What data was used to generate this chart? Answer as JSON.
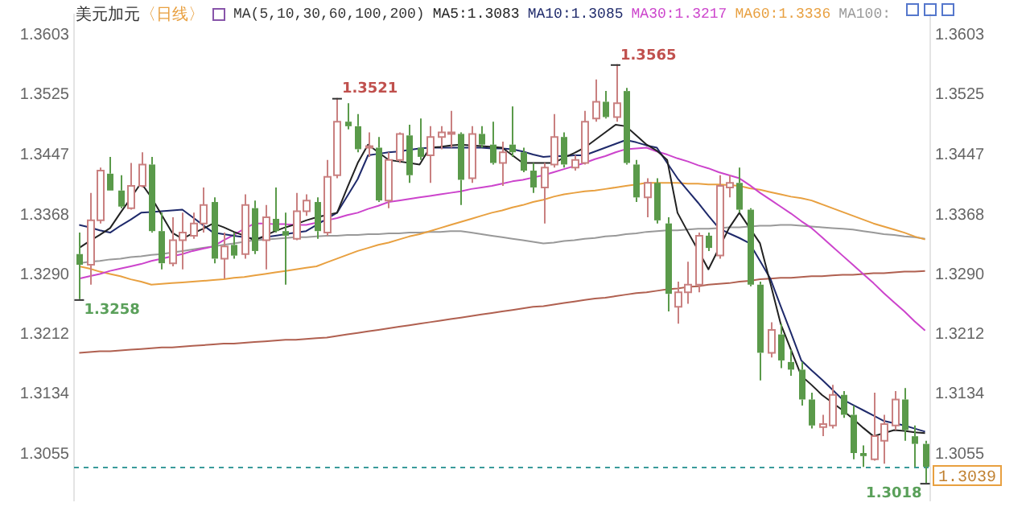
{
  "chart_data": {
    "type": "candlestick",
    "title": "美元加元",
    "subtitle": "〈日线〉",
    "legend_title": "MA(5,10,30,60,100,200)",
    "legend": "top",
    "categories": [
      null,
      null,
      null,
      null,
      null,
      null,
      null,
      null,
      null,
      null,
      null,
      null,
      null,
      null,
      null,
      null,
      null,
      null,
      null,
      null,
      null,
      null,
      null,
      null,
      null,
      null,
      null,
      null,
      null,
      null,
      null,
      null,
      null,
      null,
      null,
      null,
      null,
      null,
      null,
      null,
      null,
      null,
      null,
      null,
      null,
      null,
      null,
      null,
      null,
      null,
      null,
      null,
      null,
      null,
      null,
      null,
      null,
      null,
      null,
      null,
      null,
      null,
      null,
      null,
      null,
      null,
      null,
      null,
      null,
      null,
      null,
      null,
      null,
      null,
      null,
      null,
      null,
      null,
      null,
      null,
      null,
      null,
      null
    ],
    "ohlc": [
      [
        1.3317,
        1.3345,
        1.3258,
        1.3303
      ],
      [
        1.3303,
        1.3397,
        1.3277,
        1.3361
      ],
      [
        1.3361,
        1.343,
        1.3357,
        1.3426
      ],
      [
        1.3422,
        1.3444,
        1.34,
        1.34
      ],
      [
        1.34,
        1.342,
        1.3377,
        1.3379
      ],
      [
        1.3377,
        1.3436,
        1.3375,
        1.3406
      ],
      [
        1.3406,
        1.345,
        1.3404,
        1.3434
      ],
      [
        1.3434,
        1.3444,
        1.3345,
        1.3347
      ],
      [
        1.3347,
        1.3371,
        1.3297,
        1.3305
      ],
      [
        1.3305,
        1.3365,
        1.3301,
        1.3335
      ],
      [
        1.3335,
        1.3371,
        1.3297,
        1.3345
      ],
      [
        1.3341,
        1.3371,
        1.3337,
        1.3357
      ],
      [
        1.3357,
        1.3404,
        1.3345,
        1.3381
      ],
      [
        1.3385,
        1.3391,
        1.3305,
        1.3311
      ],
      [
        1.3311,
        1.3345,
        1.3285,
        1.3327
      ],
      [
        1.3329,
        1.3345,
        1.3311,
        1.3315
      ],
      [
        1.3317,
        1.3395,
        1.3311,
        1.3381
      ],
      [
        1.3377,
        1.3387,
        1.3317,
        1.3321
      ],
      [
        1.3335,
        1.3381,
        1.3297,
        1.3365
      ],
      [
        1.3363,
        1.3404,
        1.3345,
        1.3347
      ],
      [
        1.3347,
        1.3371,
        1.3277,
        1.3341
      ],
      [
        1.3337,
        1.3397,
        1.3335,
        1.3373
      ],
      [
        1.3373,
        1.3395,
        1.3367,
        1.3387
      ],
      [
        1.3385,
        1.3391,
        1.3337,
        1.3347
      ],
      [
        1.3345,
        1.344,
        1.3341,
        1.3418
      ],
      [
        1.342,
        1.3521,
        1.3416,
        1.349
      ],
      [
        1.349,
        1.3514,
        1.348,
        1.3484
      ],
      [
        1.3484,
        1.35,
        1.345,
        1.3454
      ],
      [
        1.3456,
        1.3476,
        1.3444,
        1.3458
      ],
      [
        1.3456,
        1.347,
        1.3385,
        1.3387
      ],
      [
        1.3387,
        1.345,
        1.3377,
        1.344
      ],
      [
        1.344,
        1.3476,
        1.3436,
        1.3474
      ],
      [
        1.3472,
        1.3486,
        1.341,
        1.342
      ],
      [
        1.3456,
        1.3494,
        1.344,
        1.3444
      ],
      [
        1.3446,
        1.3484,
        1.341,
        1.347
      ],
      [
        1.347,
        1.3484,
        1.3454,
        1.3476
      ],
      [
        1.3474,
        1.3504,
        1.3456,
        1.3476
      ],
      [
        1.3474,
        1.3476,
        1.3381,
        1.3414
      ],
      [
        1.3416,
        1.3484,
        1.341,
        1.3474
      ],
      [
        1.3474,
        1.3484,
        1.3456,
        1.346
      ],
      [
        1.346,
        1.349,
        1.3434,
        1.3436
      ],
      [
        1.3436,
        1.3464,
        1.3406,
        1.345
      ],
      [
        1.346,
        1.351,
        1.3444,
        1.345
      ],
      [
        1.345,
        1.3456,
        1.3424,
        1.3426
      ],
      [
        1.3426,
        1.3436,
        1.3397,
        1.3404
      ],
      [
        1.3404,
        1.3436,
        1.3357,
        1.343
      ],
      [
        1.3434,
        1.35,
        1.343,
        1.347
      ],
      [
        1.347,
        1.3476,
        1.343,
        1.3434
      ],
      [
        1.343,
        1.3446,
        1.3426,
        1.344
      ],
      [
        1.3436,
        1.3504,
        1.3434,
        1.349
      ],
      [
        1.3494,
        1.3545,
        1.349,
        1.3516
      ],
      [
        1.3516,
        1.353,
        1.3494,
        1.3496
      ],
      [
        1.3496,
        1.3565,
        1.349,
        1.3514
      ],
      [
        1.353,
        1.3534,
        1.3434,
        1.3436
      ],
      [
        1.3434,
        1.344,
        1.3385,
        1.3391
      ],
      [
        1.3391,
        1.3416,
        1.3365,
        1.341
      ],
      [
        1.341,
        1.3416,
        1.3357,
        1.3361
      ],
      [
        1.3357,
        1.3365,
        1.3242,
        1.3265
      ],
      [
        1.3248,
        1.3281,
        1.3226,
        1.3267
      ],
      [
        1.3267,
        1.3307,
        1.3252,
        1.3277
      ],
      [
        1.3277,
        1.3345,
        1.3267,
        1.3341
      ],
      [
        1.3341,
        1.3345,
        1.3321,
        1.3325
      ],
      [
        1.3315,
        1.342,
        1.3311,
        1.3406
      ],
      [
        1.3404,
        1.342,
        1.3391,
        1.341
      ],
      [
        1.341,
        1.343,
        1.3371,
        1.3375
      ],
      [
        1.3375,
        1.3377,
        1.3275,
        1.3277
      ],
      [
        1.3277,
        1.3281,
        1.3152,
        1.3188
      ],
      [
        1.3188,
        1.3228,
        1.3182,
        1.3218
      ],
      [
        1.3212,
        1.3226,
        1.3168,
        1.3178
      ],
      [
        1.3176,
        1.3192,
        1.3158,
        1.3166
      ],
      [
        1.3166,
        1.3176,
        1.3119,
        1.3127
      ],
      [
        1.3127,
        1.3136,
        1.3089,
        1.3093
      ],
      [
        1.3091,
        1.3107,
        1.3079,
        1.3095
      ],
      [
        1.3093,
        1.3146,
        1.3089,
        1.3133
      ],
      [
        1.3133,
        1.3138,
        1.3103,
        1.3107
      ],
      [
        1.3107,
        1.3119,
        1.3049,
        1.3057
      ],
      [
        1.3057,
        1.3067,
        1.3039,
        1.3053
      ],
      [
        1.3049,
        1.3136,
        1.3047,
        1.3079
      ],
      [
        1.3073,
        1.3107,
        1.3043,
        1.3095
      ],
      [
        1.3093,
        1.3138,
        1.3087,
        1.3127
      ],
      [
        1.3127,
        1.3142,
        1.3073,
        1.3087
      ],
      [
        1.3079,
        1.3093,
        1.3039,
        1.3069
      ],
      [
        1.3069,
        1.3073,
        1.3018,
        1.3039
      ]
    ],
    "series": [
      {
        "type": "line",
        "name": "MA5:1.3083",
        "color": "#222222",
        "values": [
          1.3325,
          1.3334,
          1.3342,
          1.3351,
          1.3371,
          1.339,
          1.341,
          1.3391,
          1.3368,
          1.3345,
          1.3337,
          1.3344,
          1.335,
          1.3357,
          1.3352,
          1.3346,
          1.3341,
          1.3335,
          1.3341,
          1.3347,
          1.3352,
          1.3356,
          1.3361,
          1.3365,
          1.3368,
          1.3371,
          1.3404,
          1.3436,
          1.346,
          1.345,
          1.344,
          1.3438,
          1.3436,
          1.3434,
          1.3456,
          1.3457,
          1.3459,
          1.346,
          1.3459,
          1.3458,
          1.3457,
          1.3456,
          1.3446,
          1.3436,
          1.3436,
          1.3436,
          1.3436,
          1.3443,
          1.3449,
          1.3456,
          1.3466,
          1.3476,
          1.3486,
          1.3484,
          1.3472,
          1.346,
          1.3452,
          1.344,
          1.3371,
          1.3346,
          1.3322,
          1.3297,
          1.3324,
          1.3351,
          1.3371,
          1.3351,
          1.3331,
          1.3279,
          1.3226,
          1.3192,
          1.3158,
          1.3146,
          1.3133,
          1.3123,
          1.3113,
          1.3102,
          1.309,
          1.3079,
          1.3083,
          1.3087,
          1.3086,
          1.3084,
          1.3083
        ]
      },
      {
        "type": "line",
        "name": "MA10:1.3085",
        "color": "#1f2a6b",
        "values": [
          1.3355,
          1.3352,
          1.3348,
          1.3345,
          1.3354,
          1.3362,
          1.3371,
          1.3372,
          1.3373,
          1.3374,
          1.3375,
          1.3365,
          1.3355,
          1.3345,
          1.3343,
          1.3341,
          1.3339,
          1.3337,
          1.3339,
          1.3341,
          1.3343,
          1.3345,
          1.3347,
          1.3355,
          1.3363,
          1.3371,
          1.3393,
          1.3415,
          1.3446,
          1.3448,
          1.345,
          1.3451,
          1.3453,
          1.3455,
          1.3456,
          1.3456,
          1.3456,
          1.3456,
          1.3456,
          1.3456,
          1.3455,
          1.3455,
          1.3454,
          1.3451,
          1.3447,
          1.3444,
          1.3445,
          1.3445,
          1.3446,
          1.3446,
          1.3451,
          1.3456,
          1.3461,
          1.3466,
          1.3463,
          1.3459,
          1.3456,
          1.3436,
          1.3416,
          1.34,
          1.3384,
          1.3367,
          1.3351,
          1.3344,
          1.3338,
          1.3331,
          1.3308,
          1.3285,
          1.3249,
          1.3214,
          1.3178,
          1.3165,
          1.3153,
          1.314,
          1.3127,
          1.312,
          1.3113,
          1.3106,
          1.3099,
          1.3096,
          1.3093,
          1.3089,
          1.3085
        ]
      },
      {
        "type": "line",
        "name": "MA30:1.3217",
        "color": "#cc44cc",
        "values": [
          1.3285,
          1.3288,
          1.3291,
          1.3295,
          1.3298,
          1.3301,
          1.3304,
          1.3308,
          1.3311,
          1.3314,
          1.3317,
          1.3321,
          1.3324,
          1.3327,
          1.3335,
          1.3342,
          1.335,
          1.3357,
          1.3357,
          1.3356,
          1.3356,
          1.3355,
          1.3355,
          1.3358,
          1.3361,
          1.3364,
          1.3368,
          1.3371,
          1.3376,
          1.338,
          1.3385,
          1.3387,
          1.3389,
          1.3391,
          1.3393,
          1.3395,
          1.3397,
          1.3399,
          1.3402,
          1.3404,
          1.3406,
          1.3409,
          1.3412,
          1.3414,
          1.3417,
          1.342,
          1.3424,
          1.3428,
          1.3432,
          1.3436,
          1.3441,
          1.3445,
          1.345,
          1.3454,
          1.3455,
          1.3456,
          1.3451,
          1.3447,
          1.3442,
          1.3438,
          1.3433,
          1.3429,
          1.3424,
          1.342,
          1.3416,
          1.3407,
          1.3397,
          1.3388,
          1.3379,
          1.337,
          1.336,
          1.3351,
          1.3339,
          1.3327,
          1.3315,
          1.3303,
          1.3291,
          1.3279,
          1.3266,
          1.3254,
          1.3242,
          1.3229,
          1.3217
        ]
      },
      {
        "type": "line",
        "name": "MA60:1.3336",
        "color": "#e8a040",
        "values": [
          1.3301,
          1.3298,
          1.3294,
          1.3291,
          1.3288,
          1.3284,
          1.3281,
          1.3277,
          1.3278,
          1.3279,
          1.328,
          1.3281,
          1.3282,
          1.3283,
          1.3284,
          1.3286,
          1.3287,
          1.3289,
          1.3291,
          1.3293,
          1.3295,
          1.3297,
          1.3299,
          1.3301,
          1.3306,
          1.3311,
          1.3316,
          1.3321,
          1.3325,
          1.3329,
          1.3332,
          1.3336,
          1.334,
          1.3343,
          1.3347,
          1.3351,
          1.3355,
          1.3359,
          1.3363,
          1.3367,
          1.3371,
          1.3374,
          1.3378,
          1.3381,
          1.3385,
          1.3388,
          1.3392,
          1.3395,
          1.3397,
          1.3399,
          1.34,
          1.3402,
          1.3404,
          1.3406,
          1.3408,
          1.341,
          1.341,
          1.341,
          1.341,
          1.3409,
          1.3409,
          1.3408,
          1.3408,
          1.3407,
          1.3406,
          1.3403,
          1.3401,
          1.3398,
          1.3395,
          1.3392,
          1.339,
          1.3387,
          1.3382,
          1.3377,
          1.3372,
          1.3367,
          1.3362,
          1.3357,
          1.3353,
          1.3349,
          1.3345,
          1.334,
          1.3336
        ]
      },
      {
        "type": "line",
        "name": "MA100:",
        "color": "#999999",
        "values": [
          1.3305,
          1.3307,
          1.3308,
          1.331,
          1.3311,
          1.3313,
          1.3314,
          1.3316,
          1.3317,
          1.3319,
          1.3321,
          1.3323,
          1.3325,
          1.3327,
          1.3329,
          1.3331,
          1.3333,
          1.3335,
          1.3336,
          1.3337,
          1.3338,
          1.3339,
          1.3339,
          1.334,
          1.3341,
          1.3341,
          1.3342,
          1.3342,
          1.3343,
          1.3343,
          1.3344,
          1.3344,
          1.3345,
          1.3345,
          1.3346,
          1.3346,
          1.3347,
          1.3347,
          1.3345,
          1.3343,
          1.3341,
          1.3339,
          1.3337,
          1.3335,
          1.3333,
          1.3331,
          1.3332,
          1.3334,
          1.3335,
          1.3337,
          1.3338,
          1.334,
          1.3341,
          1.3343,
          1.3344,
          1.3346,
          1.3347,
          1.3348,
          1.3348,
          1.3349,
          1.335,
          1.335,
          1.3351,
          1.3352,
          1.3352,
          1.3353,
          1.3354,
          1.3354,
          1.3355,
          1.3355,
          1.3354,
          1.3353,
          1.3352,
          1.3351,
          1.335,
          1.3349,
          1.3347,
          1.3345,
          1.3343,
          1.3342,
          1.334,
          1.3339,
          1.3337
        ]
      },
      {
        "type": "line",
        "color": "#b06050",
        "values": [
          1.3188,
          1.3189,
          1.319,
          1.319,
          1.3191,
          1.3192,
          1.3193,
          1.3194,
          1.3195,
          1.3195,
          1.3196,
          1.3197,
          1.3198,
          1.3199,
          1.32,
          1.32,
          1.3201,
          1.3202,
          1.3203,
          1.3204,
          1.3205,
          1.3205,
          1.3206,
          1.3207,
          1.3208,
          1.321,
          1.3212,
          1.3214,
          1.3216,
          1.3218,
          1.322,
          1.3222,
          1.3224,
          1.3226,
          1.3228,
          1.323,
          1.3232,
          1.3234,
          1.3236,
          1.3238,
          1.324,
          1.3242,
          1.3244,
          1.3246,
          1.3248,
          1.3249,
          1.3251,
          1.3253,
          1.3255,
          1.3257,
          1.3259,
          1.326,
          1.3262,
          1.3264,
          1.3266,
          1.3267,
          1.3269,
          1.3271,
          1.3272,
          1.3274,
          1.3275,
          1.3277,
          1.3278,
          1.3279,
          1.3281,
          1.3282,
          1.3284,
          1.3285,
          1.3286,
          1.3286,
          1.3287,
          1.3288,
          1.3288,
          1.3289,
          1.329,
          1.329,
          1.3291,
          1.3292,
          1.3292,
          1.3293,
          1.3294,
          1.3294,
          1.3295
        ]
      }
    ],
    "ylim": [
      1.2995,
      1.363
    ],
    "yticks": [
      1.3055,
      1.3134,
      1.3212,
      {
        "value": 1.329,
        "label": "1.3290"
      },
      1.3368,
      1.3447,
      1.3525,
      1.3603
    ],
    "y2lim": [
      1.2995,
      1.363
    ],
    "y2ticks": [
      1.3055,
      1.3134,
      1.3212,
      {
        "value": 1.329,
        "label": "1.3290"
      },
      1.3368,
      1.3447,
      1.3525,
      1.3603
    ],
    "ref_lines": [
      {
        "axis": "y",
        "value": 1.3039,
        "label": "1.3039",
        "color": "#3a9a9a",
        "line_style": "dashed"
      }
    ],
    "annotations": [
      "1.3565",
      "1.3521",
      "1.3258",
      "1.3018"
    ]
  }
}
